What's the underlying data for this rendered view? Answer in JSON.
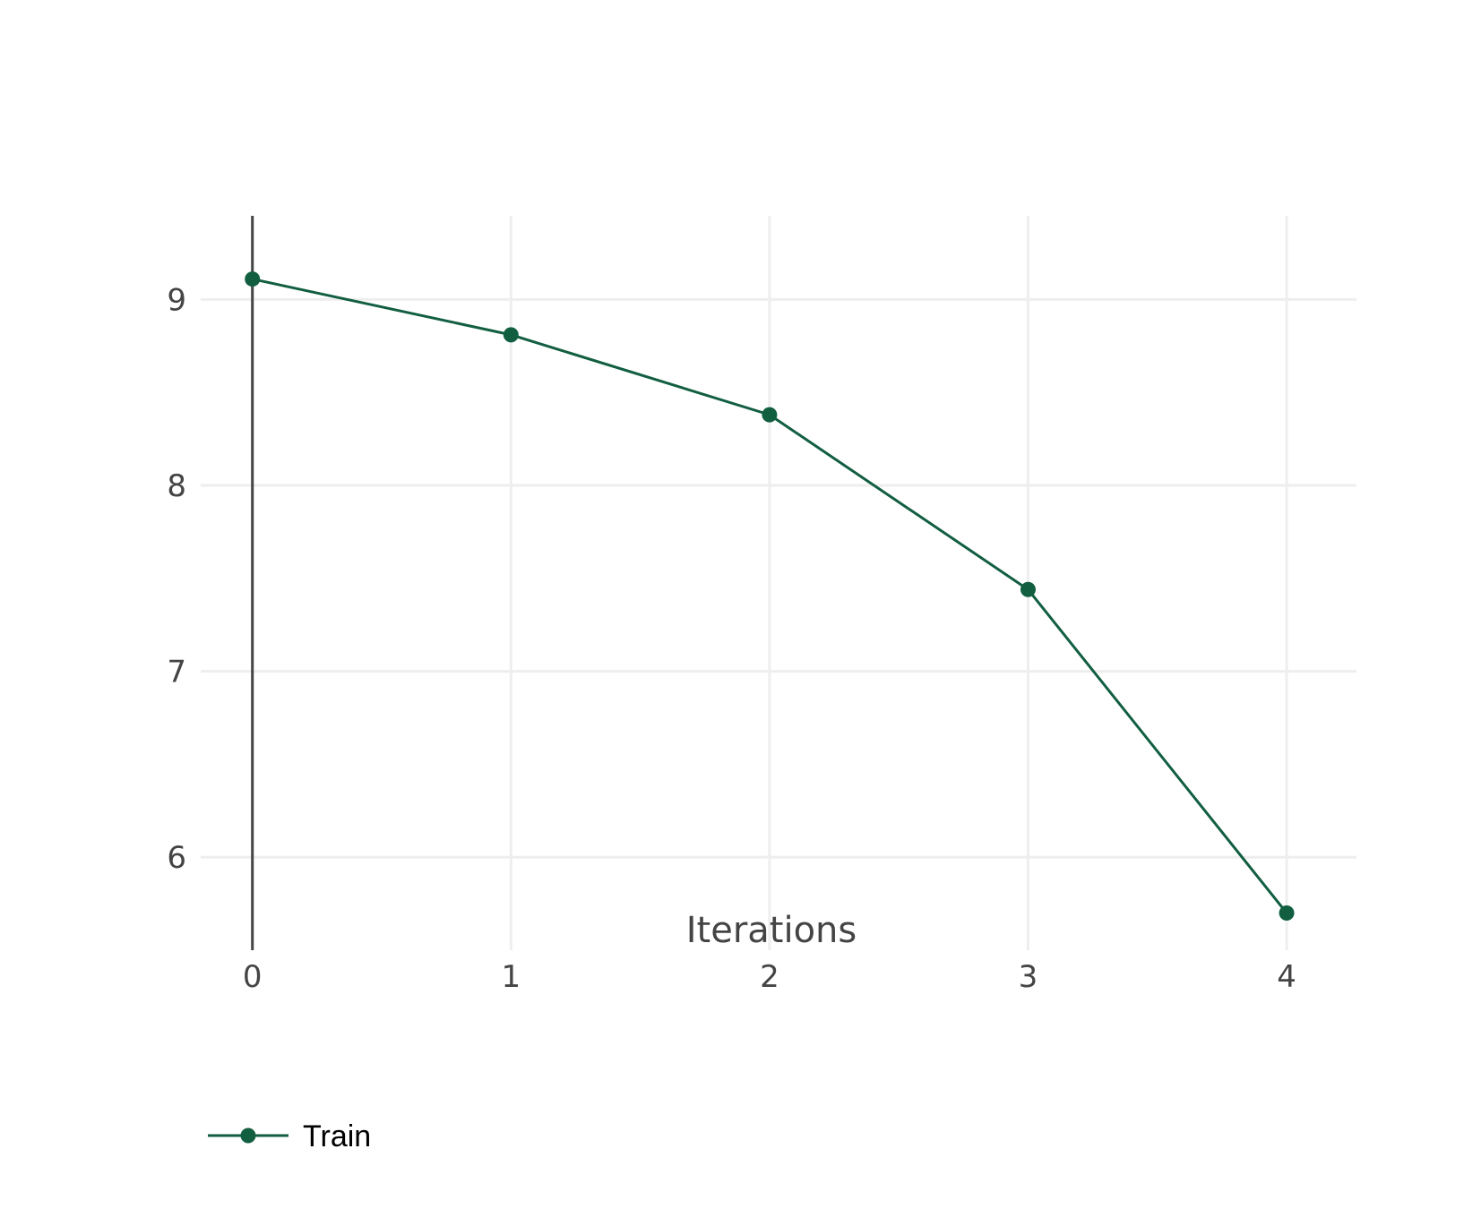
{
  "chart_data": {
    "type": "line",
    "title": "",
    "xlabel": "Iterations",
    "ylabel": "",
    "x": [
      0,
      1,
      2,
      3,
      4
    ],
    "xticks": [
      "0",
      "1",
      "2",
      "3",
      "4"
    ],
    "yticks": [
      "6",
      "7",
      "8",
      "9"
    ],
    "xlim": [
      -0.2,
      4.27
    ],
    "ylim": [
      5.5,
      9.45
    ],
    "grid": true,
    "legend_position": "bottom-left",
    "series": [
      {
        "name": "Train",
        "values": [
          9.11,
          8.81,
          8.38,
          7.44,
          5.7
        ],
        "color": "#115e41"
      }
    ]
  }
}
